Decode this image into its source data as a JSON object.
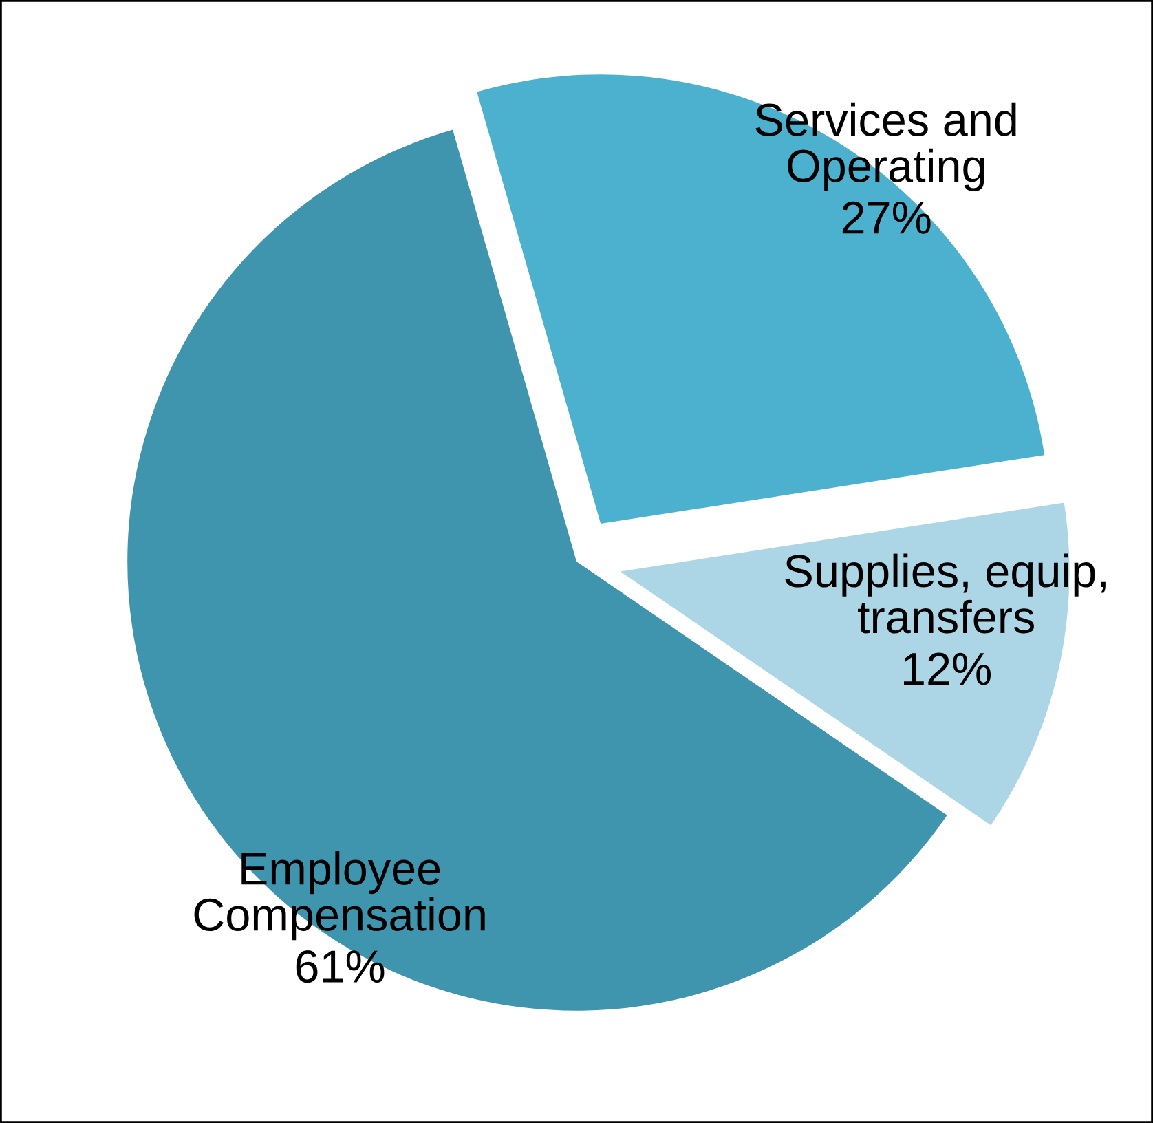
{
  "chart_data": {
    "type": "pie",
    "categories": [
      "Services and\nOperating",
      "Supplies, equip,\ntransfers",
      "Employee\nCompensation"
    ],
    "values": [
      27,
      12,
      61
    ],
    "value_labels": [
      "27%",
      "12%",
      "61%"
    ],
    "colors": [
      "#4bb1cf",
      "#acd5e5",
      "#4095ae"
    ]
  }
}
